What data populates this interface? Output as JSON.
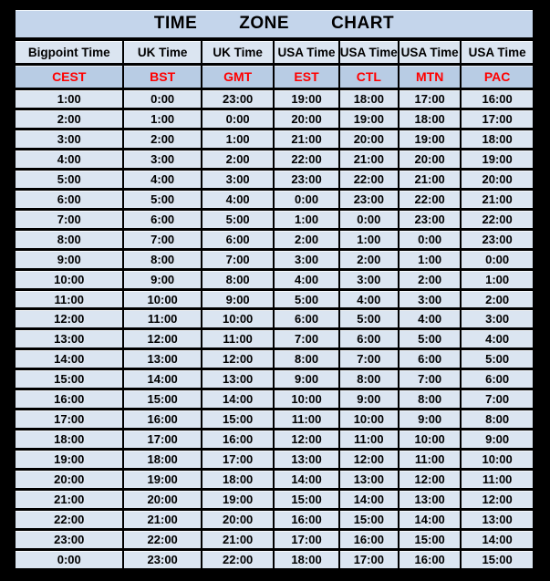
{
  "title": {
    "words": [
      "TIME",
      "ZONE",
      "CHART"
    ]
  },
  "table": {
    "column_headers": [
      "Bigpoint Time",
      "UK Time",
      "UK Time",
      "USA Time",
      "USA Time",
      "USA Time",
      "USA Time"
    ],
    "zone_codes": [
      "CEST",
      "BST",
      "GMT",
      "EST",
      "CTL",
      "MTN",
      "PAC"
    ],
    "rows": [
      [
        "1:00",
        "0:00",
        "23:00",
        "19:00",
        "18:00",
        "17:00",
        "16:00"
      ],
      [
        "2:00",
        "1:00",
        "0:00",
        "20:00",
        "19:00",
        "18:00",
        "17:00"
      ],
      [
        "3:00",
        "2:00",
        "1:00",
        "21:00",
        "20:00",
        "19:00",
        "18:00"
      ],
      [
        "4:00",
        "3:00",
        "2:00",
        "22:00",
        "21:00",
        "20:00",
        "19:00"
      ],
      [
        "5:00",
        "4:00",
        "3:00",
        "23:00",
        "22:00",
        "21:00",
        "20:00"
      ],
      [
        "6:00",
        "5:00",
        "4:00",
        "0:00",
        "23:00",
        "22:00",
        "21:00"
      ],
      [
        "7:00",
        "6:00",
        "5:00",
        "1:00",
        "0:00",
        "23:00",
        "22:00"
      ],
      [
        "8:00",
        "7:00",
        "6:00",
        "2:00",
        "1:00",
        "0:00",
        "23:00"
      ],
      [
        "9:00",
        "8:00",
        "7:00",
        "3:00",
        "2:00",
        "1:00",
        "0:00"
      ],
      [
        "10:00",
        "9:00",
        "8:00",
        "4:00",
        "3:00",
        "2:00",
        "1:00"
      ],
      [
        "11:00",
        "10:00",
        "9:00",
        "5:00",
        "4:00",
        "3:00",
        "2:00"
      ],
      [
        "12:00",
        "11:00",
        "10:00",
        "6:00",
        "5:00",
        "4:00",
        "3:00"
      ],
      [
        "13:00",
        "12:00",
        "11:00",
        "7:00",
        "6:00",
        "5:00",
        "4:00"
      ],
      [
        "14:00",
        "13:00",
        "12:00",
        "8:00",
        "7:00",
        "6:00",
        "5:00"
      ],
      [
        "15:00",
        "14:00",
        "13:00",
        "9:00",
        "8:00",
        "7:00",
        "6:00"
      ],
      [
        "16:00",
        "15:00",
        "14:00",
        "10:00",
        "9:00",
        "8:00",
        "7:00"
      ],
      [
        "17:00",
        "16:00",
        "15:00",
        "11:00",
        "10:00",
        "9:00",
        "8:00"
      ],
      [
        "18:00",
        "17:00",
        "16:00",
        "12:00",
        "11:00",
        "10:00",
        "9:00"
      ],
      [
        "19:00",
        "18:00",
        "17:00",
        "13:00",
        "12:00",
        "11:00",
        "10:00"
      ],
      [
        "20:00",
        "19:00",
        "18:00",
        "14:00",
        "13:00",
        "12:00",
        "11:00"
      ],
      [
        "21:00",
        "20:00",
        "19:00",
        "15:00",
        "14:00",
        "13:00",
        "12:00"
      ],
      [
        "22:00",
        "21:00",
        "20:00",
        "16:00",
        "15:00",
        "14:00",
        "13:00"
      ],
      [
        "23:00",
        "22:00",
        "21:00",
        "17:00",
        "16:00",
        "15:00",
        "14:00"
      ],
      [
        "0:00",
        "23:00",
        "22:00",
        "18:00",
        "17:00",
        "16:00",
        "15:00"
      ]
    ]
  },
  "colors": {
    "title_bg": "#c4d5eb",
    "header_bg": "#dbe5f1",
    "zone_bg": "#b8cce4",
    "data_bg": "#dbe5f1",
    "zone_text": "#ff0000",
    "text": "#000000",
    "border": "#000000"
  }
}
